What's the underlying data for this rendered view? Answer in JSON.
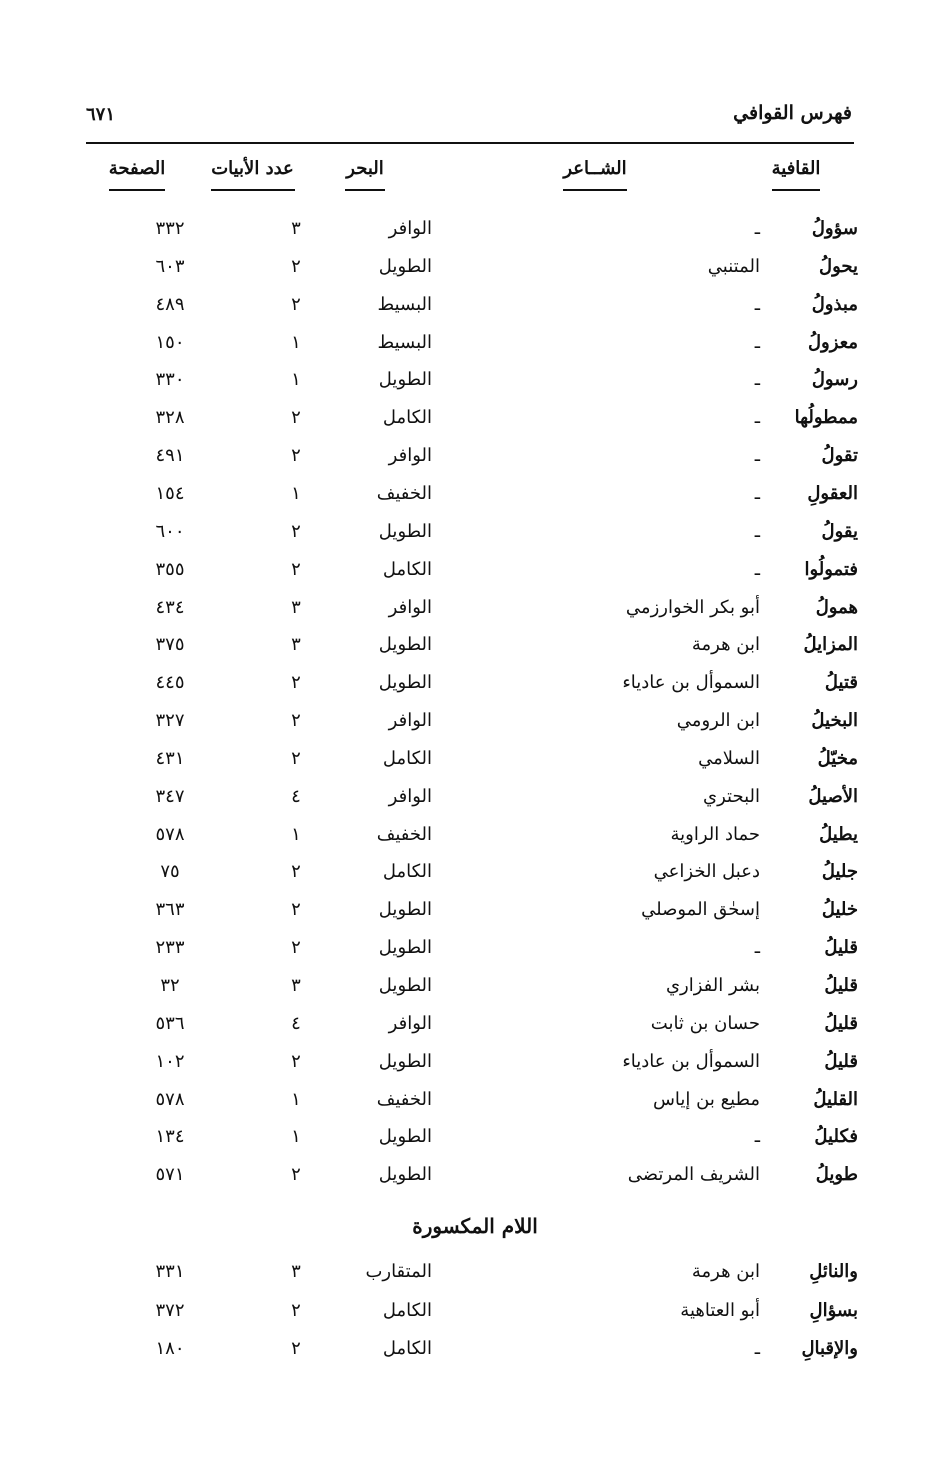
{
  "header": {
    "title": "فهرس القوافي",
    "page_number": "٦٧١"
  },
  "columns": {
    "rhyme": "القافية",
    "poet": "الشــاعر",
    "meter": "البحر",
    "verses": "عدد الأبيات",
    "page": "الصفحة"
  },
  "rows": [
    {
      "rhyme": "سؤولُ",
      "poet": "ـ",
      "meter": "الوافر",
      "verses": "٣",
      "page": "٣٣٢"
    },
    {
      "rhyme": "يحولُ",
      "poet": "المتنبي",
      "meter": "الطويل",
      "verses": "٢",
      "page": "٦٠٣"
    },
    {
      "rhyme": "مبذولُ",
      "poet": "ـ",
      "meter": "البسيط",
      "verses": "٢",
      "page": "٤٨٩"
    },
    {
      "rhyme": "معزولُ",
      "poet": "ـ",
      "meter": "البسيط",
      "verses": "١",
      "page": "١٥٠"
    },
    {
      "rhyme": "رسولُ",
      "poet": "ـ",
      "meter": "الطويل",
      "verses": "١",
      "page": "٣٣٠"
    },
    {
      "rhyme": "ممطولُها",
      "poet": "ـ",
      "meter": "الكامل",
      "verses": "٢",
      "page": "٣٢٨"
    },
    {
      "rhyme": "تقولُ",
      "poet": "ـ",
      "meter": "الوافر",
      "verses": "٢",
      "page": "٤٩١"
    },
    {
      "rhyme": "العقولِ",
      "poet": "ـ",
      "meter": "الخفيف",
      "verses": "١",
      "page": "١٥٤"
    },
    {
      "rhyme": "يقولُ",
      "poet": "ـ",
      "meter": "الطويل",
      "verses": "٢",
      "page": "٦٠٠"
    },
    {
      "rhyme": "فتمولُوا",
      "poet": "ـ",
      "meter": "الكامل",
      "verses": "٢",
      "page": "٣٥٥"
    },
    {
      "rhyme": "همولُ",
      "poet": "أبو بكر الخوارزمي",
      "meter": "الوافر",
      "verses": "٣",
      "page": "٤٣٤"
    },
    {
      "rhyme": "المزايلُ",
      "poet": "ابن هرمة",
      "meter": "الطويل",
      "verses": "٣",
      "page": "٣٧٥"
    },
    {
      "rhyme": "قتيلُ",
      "poet": "السموأل بن عادياء",
      "meter": "الطويل",
      "verses": "٢",
      "page": "٤٤٥"
    },
    {
      "rhyme": "البخيلُ",
      "poet": "ابن الرومي",
      "meter": "الوافر",
      "verses": "٢",
      "page": "٣٢٧"
    },
    {
      "rhyme": "مخيّلُ",
      "poet": "السلامي",
      "meter": "الكامل",
      "verses": "٢",
      "page": "٤٣١"
    },
    {
      "rhyme": "الأصيلُ",
      "poet": "البحتري",
      "meter": "الوافر",
      "verses": "٤",
      "page": "٣٤٧"
    },
    {
      "rhyme": "يطيلُ",
      "poet": "حماد الراوية",
      "meter": "الخفيف",
      "verses": "١",
      "page": "٥٧٨"
    },
    {
      "rhyme": "جليلُ",
      "poet": "دعبل الخزاعي",
      "meter": "الكامل",
      "verses": "٢",
      "page": "٧٥"
    },
    {
      "rhyme": "خليلُ",
      "poet": "إسحٰق الموصلي",
      "meter": "الطويل",
      "verses": "٢",
      "page": "٣٦٣"
    },
    {
      "rhyme": "قليلُ",
      "poet": "ـ",
      "meter": "الطويل",
      "verses": "٢",
      "page": "٢٣٣"
    },
    {
      "rhyme": "قليلُ",
      "poet": "بشر الفزاري",
      "meter": "الطويل",
      "verses": "٣",
      "page": "٣٢"
    },
    {
      "rhyme": "قليلُ",
      "poet": "حسان بن ثابت",
      "meter": "الوافر",
      "verses": "٤",
      "page": "٥٣٦"
    },
    {
      "rhyme": "قليلُ",
      "poet": "السموأل بن عادياء",
      "meter": "الطويل",
      "verses": "٢",
      "page": "١٠٢"
    },
    {
      "rhyme": "القليلُ",
      "poet": "مطيع بن إياس",
      "meter": "الخفيف",
      "verses": "١",
      "page": "٥٧٨"
    },
    {
      "rhyme": "فكليلُ",
      "poet": "ـ",
      "meter": "الطويل",
      "verses": "١",
      "page": "١٣٤"
    },
    {
      "rhyme": "طويلُ",
      "poet": "الشريف المرتضى",
      "meter": "الطويل",
      "verses": "٢",
      "page": "٥٧١"
    }
  ],
  "section": {
    "title": "اللام المكسورة",
    "rows": [
      {
        "rhyme": "والنائلِ",
        "poet": "ابن هرمة",
        "meter": "المتقارب",
        "verses": "٣",
        "page": "٣٣١"
      },
      {
        "rhyme": "بسؤالِ",
        "poet": "أبو العتاهية",
        "meter": "الكامل",
        "verses": "٢",
        "page": "٣٧٢"
      },
      {
        "rhyme": "والإقبالِ",
        "poet": "ـ",
        "meter": "الكامل",
        "verses": "٢",
        "page": "١٨٠"
      }
    ]
  }
}
